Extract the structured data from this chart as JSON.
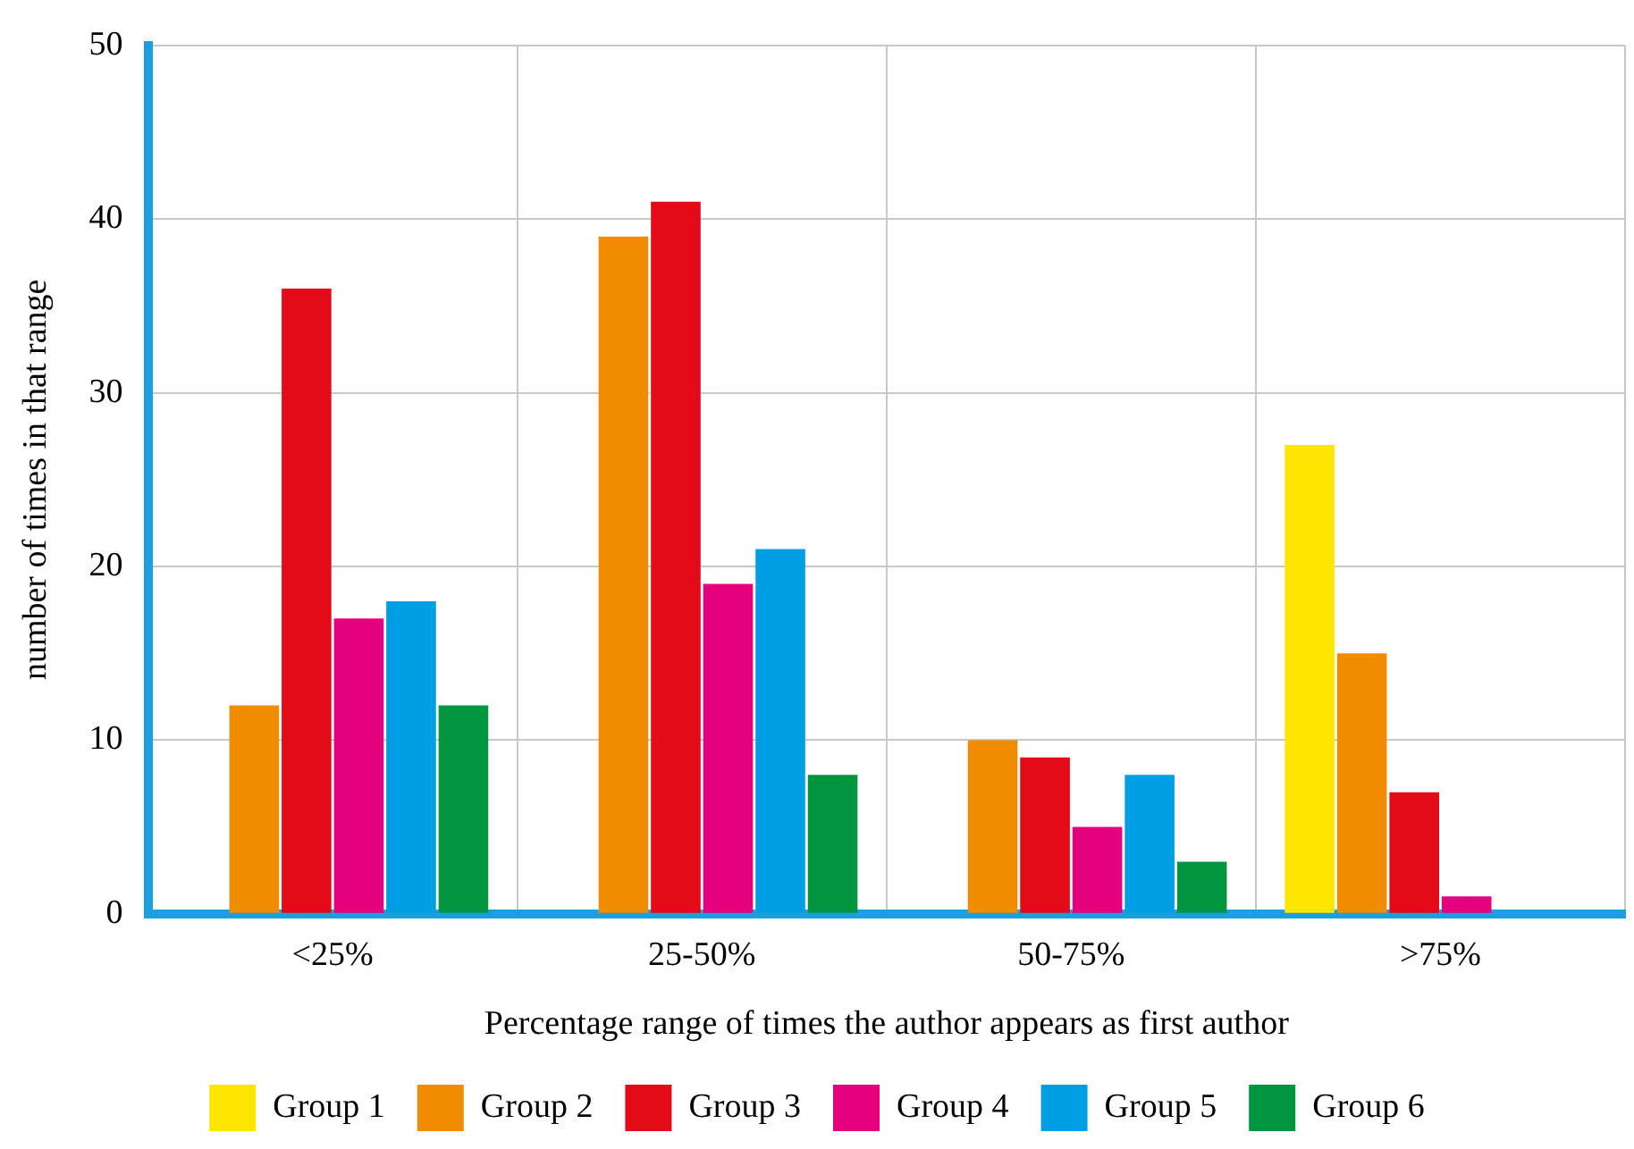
{
  "chart_data": {
    "type": "bar",
    "xlabel": "Percentage range of times the author appears as first author",
    "ylabel": "number of times in that range",
    "categories": [
      "<25%",
      "25-50%",
      "50-75%",
      ">75%"
    ],
    "series": [
      {
        "name": "Group 1",
        "color": "#ffe600",
        "values": [
          0,
          0,
          0,
          27
        ]
      },
      {
        "name": "Group 2",
        "color": "#f08c00",
        "values": [
          12,
          39,
          10,
          15
        ]
      },
      {
        "name": "Group 3",
        "color": "#e30b17",
        "values": [
          36,
          41,
          9,
          7
        ]
      },
      {
        "name": "Group 4",
        "color": "#e5007e",
        "values": [
          17,
          19,
          5,
          1
        ]
      },
      {
        "name": "Group 5",
        "color": "#009fe3",
        "values": [
          18,
          21,
          8,
          0
        ]
      },
      {
        "name": "Group 6",
        "color": "#009640",
        "values": [
          12,
          8,
          3,
          0
        ]
      }
    ],
    "ylim": [
      0,
      50
    ],
    "yticks": [
      0,
      10,
      20,
      30,
      40,
      50
    ],
    "grid": true,
    "legend": "bottom"
  }
}
